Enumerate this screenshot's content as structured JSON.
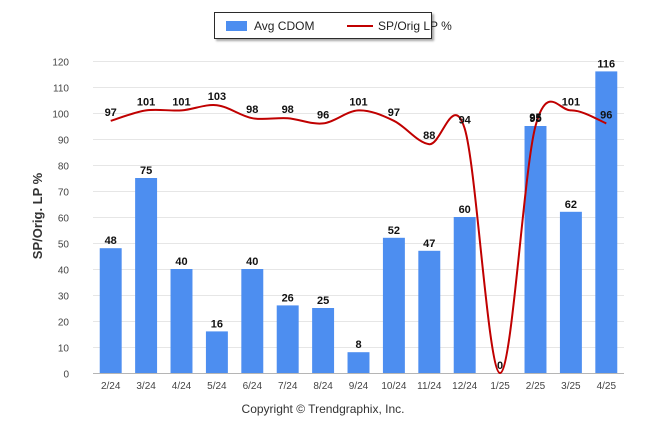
{
  "chart_data": {
    "type": "bar+line",
    "categories": [
      "2/24",
      "3/24",
      "4/24",
      "5/24",
      "6/24",
      "7/24",
      "8/24",
      "9/24",
      "10/24",
      "11/24",
      "12/24",
      "1/25",
      "2/25",
      "3/25",
      "4/25"
    ],
    "series": [
      {
        "name": "Avg CDOM",
        "type": "bar",
        "color": "#4d8ef0",
        "values": [
          48,
          75,
          40,
          16,
          40,
          26,
          25,
          8,
          52,
          47,
          60,
          0,
          95,
          62,
          116
        ]
      },
      {
        "name": "SP/Orig LP %",
        "type": "line",
        "color": "#c00000",
        "values": [
          97,
          101,
          101,
          103,
          98,
          98,
          96,
          101,
          97,
          88,
          94,
          0,
          95,
          101,
          96
        ]
      }
    ],
    "ylabel": "SP/Orig. LP %",
    "xlabel": "",
    "ylim": [
      0,
      120
    ],
    "yticks": [
      0,
      10,
      20,
      30,
      40,
      50,
      60,
      70,
      80,
      90,
      100,
      110,
      120
    ],
    "grid": true,
    "legend_position": "top-center"
  },
  "legend": {
    "bar_label": "Avg CDOM",
    "line_label": "SP/Orig LP %"
  },
  "footer": {
    "copyright": "Copyright © Trendgraphix, Inc."
  }
}
